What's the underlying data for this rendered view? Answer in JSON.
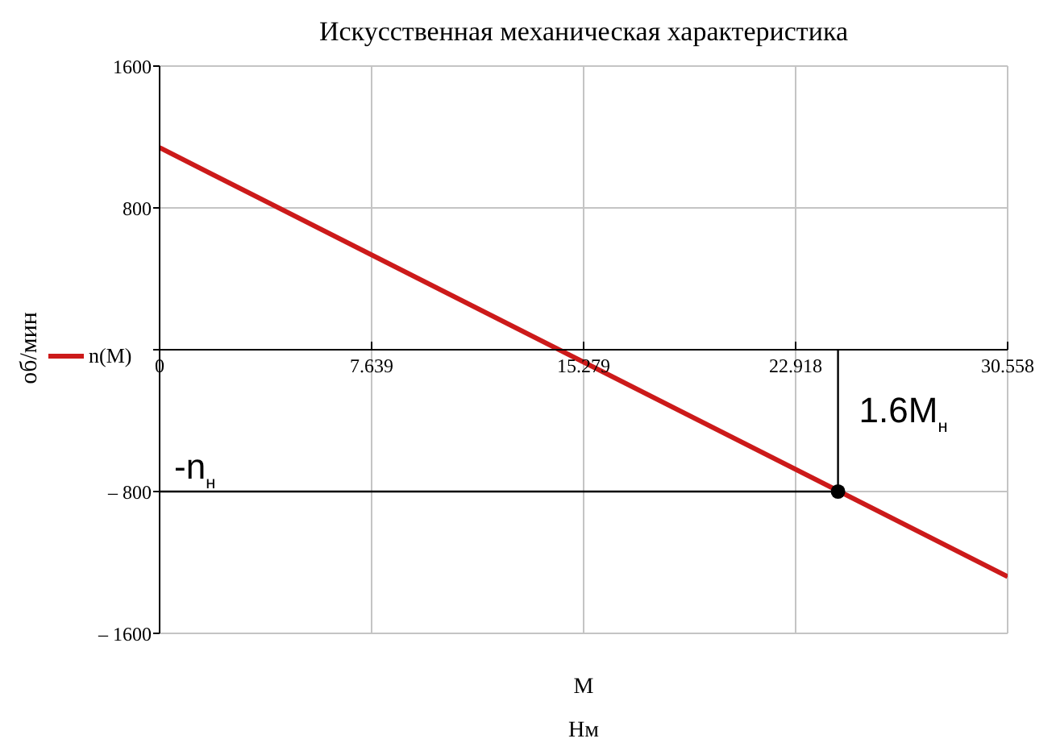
{
  "chart_data": {
    "type": "line",
    "title": "Искусственная механическая характеристика",
    "xlabel": "M\nНм",
    "ylabel": "об/мин",
    "series": [
      {
        "name": "n(M)",
        "color": "#cc1a1a",
        "x": [
          0,
          30.558
        ],
        "values": [
          1140,
          -1280
        ]
      },
      {
        "type": "scatter",
        "color": "#000000",
        "x": [
          24.446
        ],
        "values": [
          -800
        ],
        "marker": "circle"
      }
    ],
    "xlim": [
      0,
      30.558
    ],
    "xticks": [
      0,
      7.639,
      15.279,
      22.918,
      30.558
    ],
    "ylim": [
      -1600,
      1600
    ],
    "yticks": [
      {
        "value": -1600,
        "label": "– 1600"
      },
      {
        "value": -800,
        "label": "– 800"
      },
      {
        "value": 0,
        "label": null
      },
      800,
      1600
    ],
    "ref_lines": [
      {
        "axis": "y",
        "value": -800,
        "label": "-n$_{н}$",
        "color": "#000000"
      },
      {
        "axis": "x",
        "value": 24.446,
        "label": "1.6M$_{н}$",
        "color": "#000000"
      }
    ],
    "grid": true,
    "legend": "left",
    "line_style": "solid"
  }
}
